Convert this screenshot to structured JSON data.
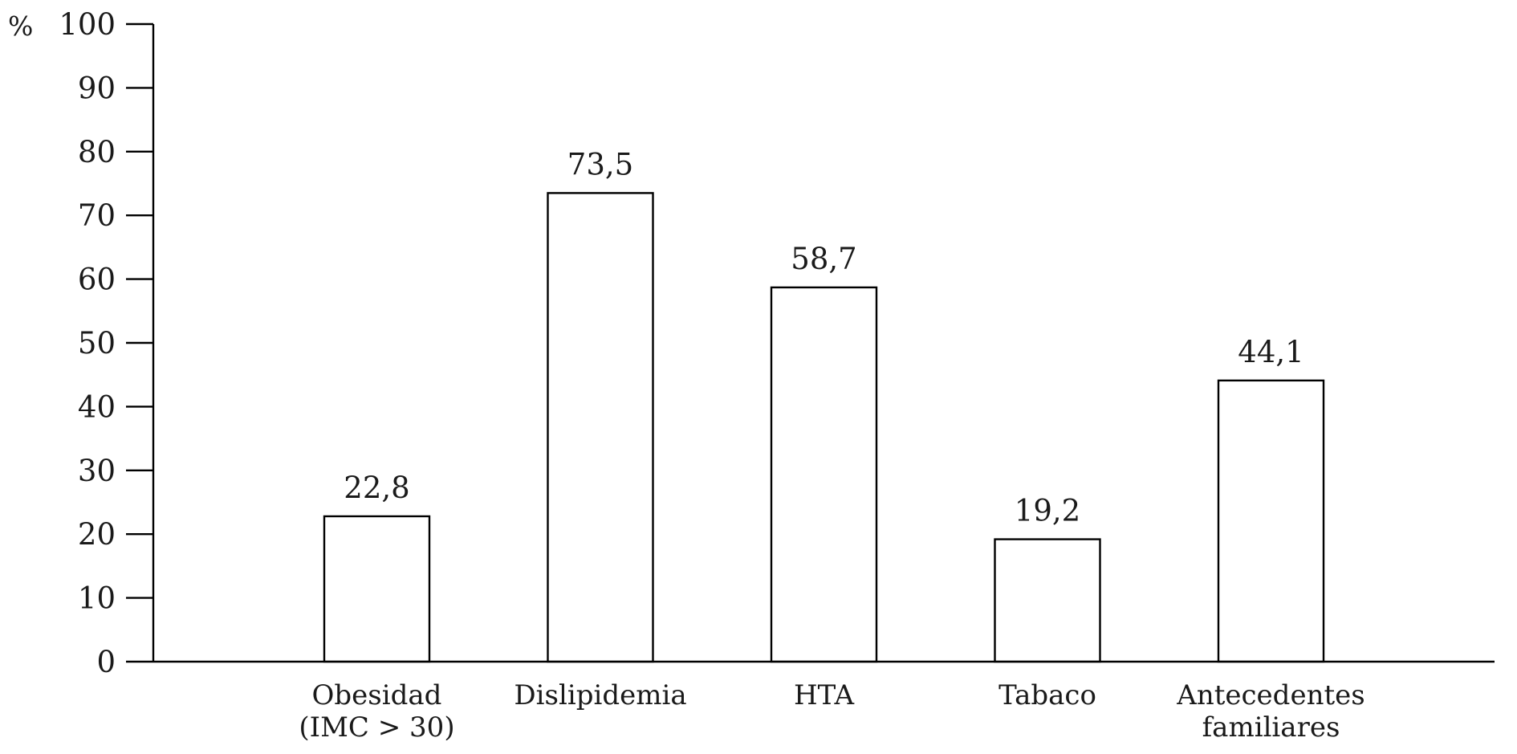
{
  "chart_data": {
    "type": "bar",
    "ylabel": "%",
    "ylim": [
      0,
      100
    ],
    "yticks": [
      0,
      10,
      20,
      30,
      40,
      50,
      60,
      70,
      80,
      90,
      100
    ],
    "grid": false,
    "categories": [
      [
        "Obesidad",
        "(IMC > 30)"
      ],
      [
        "Dislipidemia"
      ],
      [
        "HTA"
      ],
      [
        "Tabaco"
      ],
      [
        "Antecedentes",
        "familiares"
      ]
    ],
    "values": [
      22.8,
      73.5,
      58.7,
      19.2,
      44.1
    ],
    "value_labels": [
      "22,8",
      "73,5",
      "58,7",
      "19,2",
      "44,1"
    ]
  }
}
